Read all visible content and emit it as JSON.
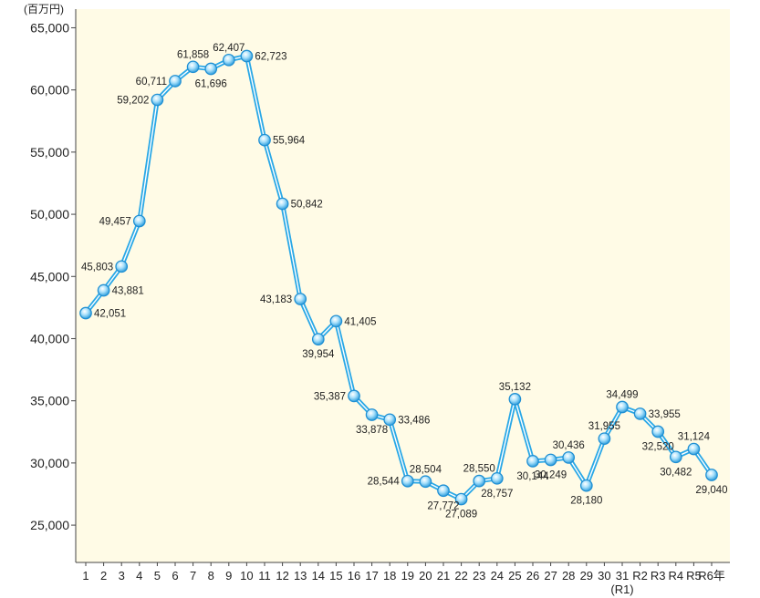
{
  "chart_data": {
    "type": "line",
    "unit_label": "(百万円)",
    "x_tick_labels": [
      "1",
      "2",
      "3",
      "4",
      "5",
      "6",
      "7",
      "8",
      "9",
      "10",
      "11",
      "12",
      "13",
      "14",
      "15",
      "16",
      "17",
      "18",
      "19",
      "20",
      "21",
      "22",
      "23",
      "24",
      "25",
      "26",
      "27",
      "28",
      "29",
      "30",
      "31",
      "R2",
      "R3",
      "R4",
      "R5",
      "R6年"
    ],
    "x_sublabels": {
      "30": "(R1)"
    },
    "series": [
      {
        "values": [
          42051,
          43881,
          45803,
          49457,
          59202,
          60711,
          61858,
          61696,
          62407,
          62723,
          55964,
          50842,
          43183,
          39954,
          41405,
          35387,
          33878,
          33486,
          28544,
          28504,
          27772,
          27089,
          28550,
          28757,
          35132,
          30144,
          30249,
          30436,
          28180,
          31955,
          34499,
          33955,
          32520,
          30482,
          31124,
          29040
        ],
        "data_labels": [
          "42,051",
          "43,881",
          "45,803",
          "49,457",
          "59,202",
          "60,711",
          "61,858",
          "61,696",
          "62,407",
          "62,723",
          "55,964",
          "50,842",
          "43,183",
          "39,954",
          "41,405",
          "35,387",
          "33,878",
          "33,486",
          "28,544",
          "28,504",
          "27,772",
          "27,089",
          "28,550",
          "28,757",
          "35,132",
          "30,144",
          "30,249",
          "30,436",
          "28,180",
          "31,955",
          "34,499",
          "33,955",
          "32,520",
          "30,482",
          "31,124",
          "29,040"
        ],
        "color": "#2aa8e6"
      }
    ],
    "y_ticks": [
      25000,
      30000,
      35000,
      40000,
      45000,
      50000,
      55000,
      60000,
      65000
    ],
    "y_tick_labels": [
      "25,000",
      "30,000",
      "35,000",
      "40,000",
      "45,000",
      "50,000",
      "55,000",
      "60,000",
      "65,000"
    ],
    "ylim": [
      22000,
      66500
    ],
    "grid": false,
    "plot_background": "#fffbe6"
  }
}
